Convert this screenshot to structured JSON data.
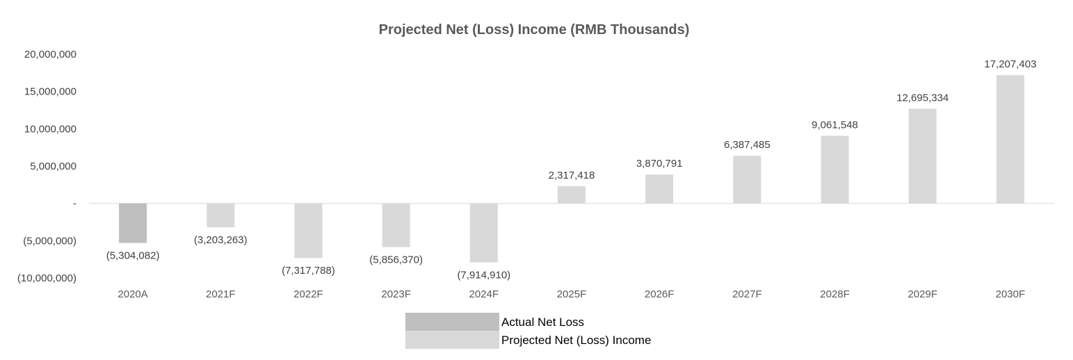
{
  "chart_data": {
    "type": "bar",
    "title": "Projected Net (Loss) Income (RMB Thousands)",
    "xlabel": "",
    "ylabel": "",
    "ylim": [
      -10000000,
      20000000
    ],
    "yticks": [
      20000000,
      15000000,
      10000000,
      5000000,
      0,
      -5000000,
      -10000000
    ],
    "ytick_labels": [
      "20,000,000",
      "15,000,000",
      "10,000,000",
      "5,000,000",
      "-",
      "(5,000,000)",
      "(10,000,000)"
    ],
    "grid": false,
    "legend_position": "bottom",
    "categories": [
      "2020A",
      "2021F",
      "2022F",
      "2023F",
      "2024F",
      "2025F",
      "2026F",
      "2027F",
      "2028F",
      "2029F",
      "2030F"
    ],
    "series": [
      {
        "name": "Actual Net Loss",
        "color": "#bfbfbf",
        "values": [
          -5304082,
          null,
          null,
          null,
          null,
          null,
          null,
          null,
          null,
          null,
          null
        ],
        "labels": [
          "(5,304,082)",
          "",
          "",
          "",
          "",
          "",
          "",
          "",
          "",
          "",
          ""
        ]
      },
      {
        "name": "Projected Net (Loss) Income",
        "color": "#d9d9d9",
        "values": [
          null,
          -3203263,
          -7317788,
          -5856370,
          -7914910,
          2317418,
          3870791,
          6387485,
          9061548,
          12695334,
          17207403
        ],
        "labels": [
          "",
          "(3,203,263)",
          "(7,317,788)",
          "(5,856,370)",
          "(7,914,910)",
          "2,317,418",
          "3,870,791",
          "6,387,485",
          "9,061,548",
          "12,695,334",
          "17,207,403"
        ]
      }
    ]
  }
}
